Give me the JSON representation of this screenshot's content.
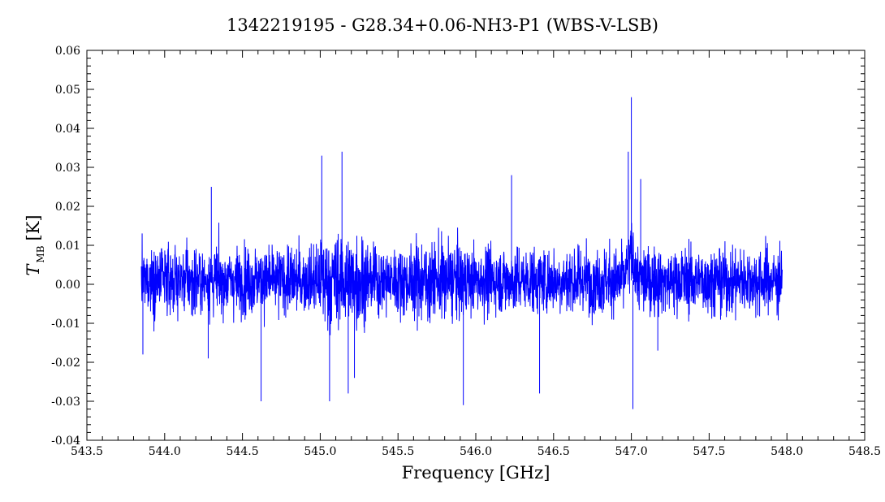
{
  "chart_data": {
    "type": "line",
    "title": "1342219195 - G28.34+0.06-NH3-P1 (WBS-V-LSB)",
    "xlabel": "Frequency [GHz]",
    "ylabel_main": "T",
    "ylabel_sub": "MB",
    "ylabel_unit": "[K]",
    "xlim": [
      543.5,
      548.5
    ],
    "ylim": [
      -0.04,
      0.06
    ],
    "x_ticks": [
      543.5,
      544.0,
      544.5,
      545.0,
      545.5,
      546.0,
      546.5,
      547.0,
      547.5,
      548.0,
      548.5
    ],
    "x_tick_labels": [
      "543.5",
      "544.0",
      "544.5",
      "545.0",
      "545.5",
      "546.0",
      "546.5",
      "547.0",
      "547.5",
      "548.0",
      "548.5"
    ],
    "y_ticks": [
      -0.04,
      -0.03,
      -0.02,
      -0.01,
      0.0,
      0.01,
      0.02,
      0.03,
      0.04,
      0.05,
      0.06
    ],
    "y_tick_labels": [
      "-0.04",
      "-0.03",
      "-0.02",
      "-0.01",
      "0.00",
      "0.01",
      "0.02",
      "0.03",
      "0.04",
      "0.05",
      "0.06"
    ],
    "grid": false,
    "series": [
      {
        "color": "#0000ff",
        "x_range": [
          543.85,
          547.97
        ],
        "noise_level": 0.007,
        "baseline": 0.001,
        "peaks": [
          {
            "x": 543.86,
            "y": -0.018
          },
          {
            "x": 544.28,
            "y": -0.019
          },
          {
            "x": 544.3,
            "y": 0.025
          },
          {
            "x": 544.62,
            "y": -0.03
          },
          {
            "x": 545.01,
            "y": 0.033
          },
          {
            "x": 545.06,
            "y": -0.03
          },
          {
            "x": 545.14,
            "y": 0.034
          },
          {
            "x": 545.18,
            "y": -0.028
          },
          {
            "x": 545.22,
            "y": -0.024
          },
          {
            "x": 545.92,
            "y": -0.031
          },
          {
            "x": 546.23,
            "y": 0.028
          },
          {
            "x": 546.41,
            "y": -0.028
          },
          {
            "x": 546.98,
            "y": 0.034
          },
          {
            "x": 547.0,
            "y": 0.048
          },
          {
            "x": 547.01,
            "y": -0.032
          },
          {
            "x": 547.06,
            "y": 0.027
          },
          {
            "x": 547.17,
            "y": -0.017
          }
        ]
      }
    ]
  }
}
